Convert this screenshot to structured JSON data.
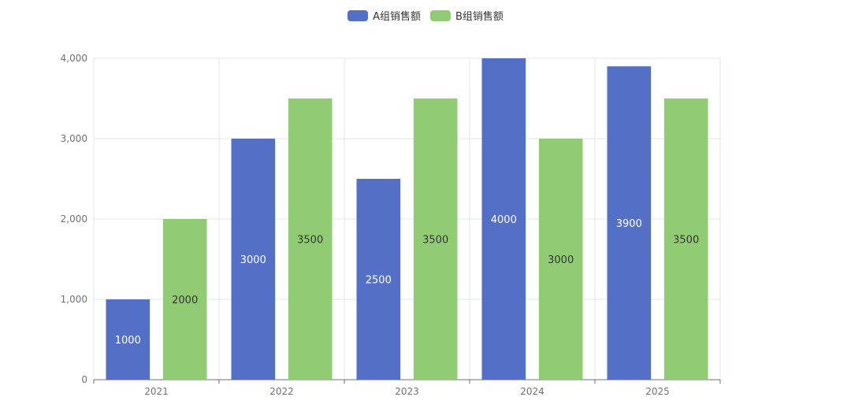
{
  "chart_data": {
    "type": "bar",
    "categories": [
      "2021",
      "2022",
      "2023",
      "2024",
      "2025"
    ],
    "series": [
      {
        "name": "A组销售额",
        "color": "#5470c6",
        "values": [
          1000,
          3000,
          2500,
          4000,
          3900
        ],
        "label_color": "#ffffff"
      },
      {
        "name": "B组销售额",
        "color": "#91cc75",
        "values": [
          2000,
          3500,
          3500,
          3000,
          3500
        ],
        "label_color": "#333333"
      }
    ],
    "y_ticks": [
      0,
      1000,
      2000,
      3000,
      4000
    ],
    "y_tick_labels": [
      "0",
      "1,000",
      "2,000",
      "3,000",
      "4,000"
    ],
    "ylim": [
      0,
      4000
    ],
    "grid": true,
    "legend_position": "top-center"
  }
}
